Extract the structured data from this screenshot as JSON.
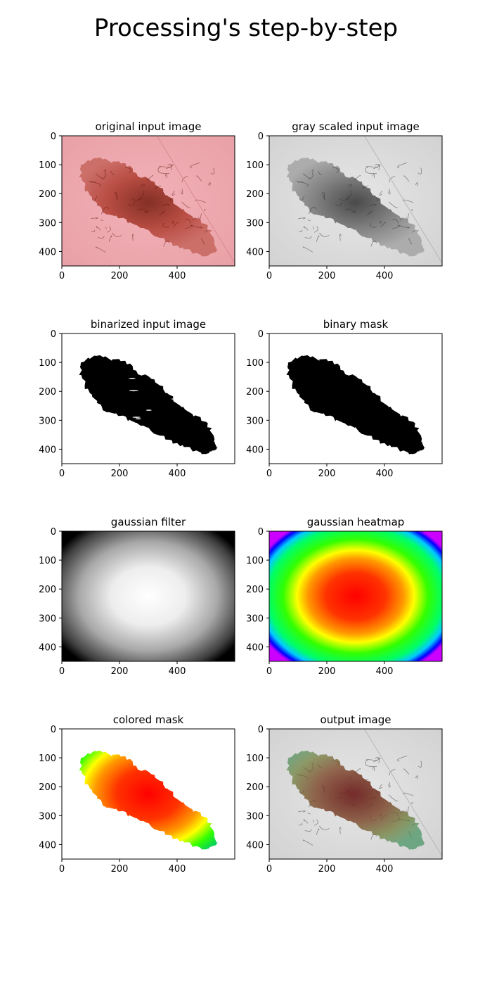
{
  "figure": {
    "suptitle": "Processing's step-by-step"
  },
  "chart_data": [
    {
      "type": "image",
      "title": "original input image",
      "kind": "rgb_lesion",
      "xlim": [
        0,
        600
      ],
      "ylim": [
        450,
        0
      ],
      "xticks": [
        "0",
        "200",
        "400"
      ],
      "yticks": [
        "0",
        "100",
        "200",
        "300",
        "400"
      ]
    },
    {
      "type": "image",
      "title": "gray scaled input image",
      "kind": "gray_lesion",
      "xlim": [
        0,
        600
      ],
      "ylim": [
        450,
        0
      ],
      "xticks": [
        "0",
        "200",
        "400"
      ],
      "yticks": [
        "0",
        "100",
        "200",
        "300",
        "400"
      ]
    },
    {
      "type": "image",
      "title": "binarized input image",
      "kind": "binarized",
      "xlim": [
        0,
        600
      ],
      "ylim": [
        450,
        0
      ],
      "xticks": [
        "0",
        "200",
        "400"
      ],
      "yticks": [
        "0",
        "100",
        "200",
        "300",
        "400"
      ]
    },
    {
      "type": "image",
      "title": "binary mask",
      "kind": "binary_mask",
      "xlim": [
        0,
        600
      ],
      "ylim": [
        450,
        0
      ],
      "xticks": [
        "0",
        "200",
        "400"
      ],
      "yticks": [
        "0",
        "100",
        "200",
        "300",
        "400"
      ]
    },
    {
      "type": "heatmap",
      "title": "gaussian filter",
      "kind": "gaussian_gray",
      "colormap": "gray",
      "center": [
        300,
        225
      ],
      "xlim": [
        0,
        600
      ],
      "ylim": [
        450,
        0
      ],
      "xticks": [
        "0",
        "200",
        "400"
      ],
      "yticks": [
        "0",
        "100",
        "200",
        "300",
        "400"
      ]
    },
    {
      "type": "heatmap",
      "title": "gaussian heatmap",
      "kind": "gaussian_color",
      "colormap": "hsv",
      "center": [
        300,
        225
      ],
      "xlim": [
        0,
        600
      ],
      "ylim": [
        450,
        0
      ],
      "xticks": [
        "0",
        "200",
        "400"
      ],
      "yticks": [
        "0",
        "100",
        "200",
        "300",
        "400"
      ]
    },
    {
      "type": "image",
      "title": "colored mask",
      "kind": "colored_mask",
      "xlim": [
        0,
        600
      ],
      "ylim": [
        450,
        0
      ],
      "xticks": [
        "0",
        "200",
        "400"
      ],
      "yticks": [
        "0",
        "100",
        "200",
        "300",
        "400"
      ]
    },
    {
      "type": "image",
      "title": "output image",
      "kind": "output_overlay",
      "xlim": [
        0,
        600
      ],
      "ylim": [
        450,
        0
      ],
      "xticks": [
        "0",
        "200",
        "400"
      ],
      "yticks": [
        "0",
        "100",
        "200",
        "300",
        "400"
      ]
    }
  ]
}
